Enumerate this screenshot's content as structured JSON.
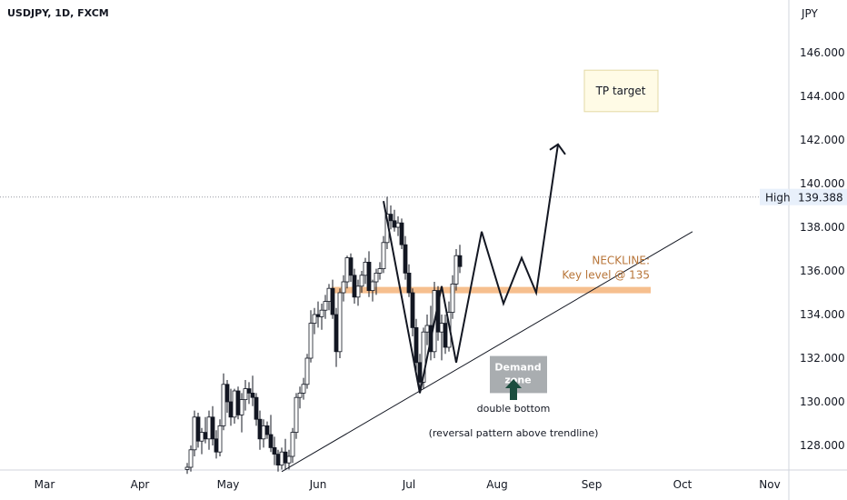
{
  "header": {
    "symbol": "USDJPY, 1D, FXCM",
    "currency": "JPY"
  },
  "colors": {
    "up": "#26a69a",
    "down": "#ef5350",
    "candle_outline": "#131722",
    "neckline_band": "#f5b47a",
    "neckline_text": "#b8763a",
    "demand_zone": "#8c9296",
    "arrow_green": "#1b4d3e",
    "tp_box_fill": "#fffbe6",
    "tp_box_border": "#e3d9a5"
  },
  "chart_data": {
    "type": "candlestick",
    "symbol": "USDJPY",
    "timeframe": "1D",
    "source": "FXCM",
    "x_labels": [
      "Mar",
      "Apr",
      "May",
      "Jun",
      "Jul",
      "Aug",
      "Sep",
      "Oct",
      "Nov"
    ],
    "y_ticks": [
      "146.000",
      "144.000",
      "142.000",
      "140.000",
      "138.000",
      "136.000",
      "134.000",
      "132.000",
      "130.000",
      "128.000"
    ],
    "ylim": [
      126.8,
      148.2
    ],
    "high_marker": {
      "label": "High",
      "value": 139.388,
      "text": "139.388"
    },
    "candles": [
      [
        4.2,
        126.9,
        127.2,
        126.7,
        127.0
      ],
      [
        4.4,
        127.0,
        128.0,
        126.8,
        127.8
      ],
      [
        4.6,
        127.8,
        129.6,
        127.5,
        129.3
      ],
      [
        4.8,
        129.3,
        129.5,
        127.9,
        128.2
      ],
      [
        5.0,
        128.2,
        128.8,
        127.6,
        128.6
      ],
      [
        5.2,
        128.6,
        129.3,
        128.1,
        128.3
      ],
      [
        5.4,
        128.3,
        129.6,
        127.8,
        129.3
      ],
      [
        5.6,
        129.3,
        129.8,
        128.0,
        128.3
      ],
      [
        5.8,
        128.3,
        128.7,
        127.4,
        127.7
      ],
      [
        6.0,
        127.7,
        129.2,
        127.5,
        128.9
      ],
      [
        6.2,
        128.9,
        131.3,
        128.7,
        130.8
      ],
      [
        6.4,
        130.8,
        131.0,
        129.5,
        130.0
      ],
      [
        6.6,
        130.0,
        130.6,
        128.9,
        129.3
      ],
      [
        6.8,
        129.3,
        130.6,
        129.0,
        130.5
      ],
      [
        7.0,
        130.5,
        130.7,
        129.2,
        129.4
      ],
      [
        7.2,
        129.4,
        130.4,
        128.6,
        130.1
      ],
      [
        7.4,
        130.1,
        131.0,
        129.6,
        130.6
      ],
      [
        7.6,
        130.6,
        130.9,
        129.9,
        130.4
      ],
      [
        7.8,
        130.4,
        131.2,
        129.8,
        130.2
      ],
      [
        8.0,
        130.2,
        130.4,
        128.9,
        129.2
      ],
      [
        8.2,
        129.2,
        129.6,
        127.8,
        128.3
      ],
      [
        8.4,
        128.3,
        129.2,
        127.9,
        128.9
      ],
      [
        8.6,
        128.9,
        129.1,
        128.3,
        128.5
      ],
      [
        8.8,
        128.5,
        129.4,
        127.7,
        127.9
      ],
      [
        9.0,
        127.9,
        128.4,
        127.1,
        127.6
      ],
      [
        9.2,
        127.6,
        127.8,
        126.8,
        127.1
      ],
      [
        9.4,
        127.1,
        127.9,
        126.9,
        127.7
      ],
      [
        9.6,
        127.7,
        128.3,
        126.9,
        127.2
      ],
      [
        9.8,
        127.2,
        127.8,
        126.9,
        127.5
      ],
      [
        10.0,
        127.5,
        128.8,
        127.2,
        128.6
      ],
      [
        10.2,
        128.6,
        130.4,
        128.3,
        130.2
      ],
      [
        10.4,
        130.2,
        130.7,
        129.7,
        130.4
      ],
      [
        10.6,
        130.4,
        131.1,
        130.1,
        130.8
      ],
      [
        10.8,
        130.8,
        132.2,
        130.6,
        132.0
      ],
      [
        11.0,
        132.0,
        134.2,
        131.8,
        133.6
      ],
      [
        11.2,
        133.6,
        134.3,
        133.1,
        134.0
      ],
      [
        11.4,
        134.0,
        134.6,
        133.4,
        133.9
      ],
      [
        11.6,
        133.9,
        134.5,
        133.3,
        134.2
      ],
      [
        11.8,
        134.2,
        134.9,
        133.8,
        134.6
      ],
      [
        12.0,
        134.6,
        135.4,
        134.2,
        135.2
      ],
      [
        12.2,
        135.2,
        135.6,
        133.8,
        134.0
      ],
      [
        12.4,
        134.0,
        134.3,
        131.6,
        132.3
      ],
      [
        12.6,
        132.3,
        135.2,
        132.0,
        135.0
      ],
      [
        12.8,
        135.0,
        135.8,
        134.6,
        135.5
      ],
      [
        13.0,
        135.5,
        136.7,
        135.2,
        136.6
      ],
      [
        13.2,
        136.6,
        136.8,
        135.5,
        135.8
      ],
      [
        13.4,
        135.8,
        136.1,
        134.5,
        134.8
      ],
      [
        13.6,
        134.8,
        135.6,
        134.4,
        135.3
      ],
      [
        13.8,
        135.3,
        136.0,
        135.0,
        135.8
      ],
      [
        14.0,
        135.8,
        136.6,
        135.4,
        136.4
      ],
      [
        14.2,
        136.4,
        136.9,
        134.8,
        135.1
      ],
      [
        14.4,
        135.1,
        135.6,
        134.6,
        135.5
      ],
      [
        14.6,
        135.5,
        136.1,
        134.9,
        135.9
      ],
      [
        14.8,
        135.9,
        136.4,
        135.6,
        136.1
      ],
      [
        15.0,
        136.1,
        137.6,
        135.9,
        137.3
      ],
      [
        15.2,
        137.3,
        139.4,
        137.0,
        138.6
      ],
      [
        15.4,
        138.6,
        139.0,
        137.9,
        138.3
      ],
      [
        15.6,
        138.3,
        138.8,
        137.8,
        138.0
      ],
      [
        15.8,
        138.0,
        138.5,
        137.6,
        138.2
      ],
      [
        16.0,
        138.2,
        138.4,
        137.0,
        137.2
      ],
      [
        16.2,
        137.2,
        137.6,
        135.6,
        135.9
      ],
      [
        16.4,
        135.9,
        136.3,
        134.8,
        135.0
      ],
      [
        16.6,
        135.0,
        135.2,
        133.0,
        133.4
      ],
      [
        16.8,
        133.4,
        133.8,
        131.4,
        131.8
      ],
      [
        17.0,
        131.8,
        132.2,
        130.4,
        130.9
      ],
      [
        17.2,
        130.9,
        133.4,
        130.6,
        133.2
      ],
      [
        17.4,
        133.2,
        134.0,
        132.6,
        133.5
      ],
      [
        17.6,
        133.5,
        134.4,
        131.9,
        132.3
      ],
      [
        17.8,
        132.3,
        135.5,
        132.0,
        135.1
      ],
      [
        18.0,
        135.1,
        135.3,
        132.8,
        133.2
      ],
      [
        18.2,
        133.2,
        134.0,
        131.9,
        133.6
      ],
      [
        18.4,
        133.6,
        134.0,
        132.2,
        132.5
      ],
      [
        18.6,
        132.5,
        134.6,
        132.3,
        134.1
      ],
      [
        18.8,
        134.1,
        135.8,
        133.8,
        135.4
      ],
      [
        19.0,
        135.4,
        137.0,
        135.1,
        136.7
      ],
      [
        19.2,
        136.7,
        137.2,
        135.9,
        136.2
      ]
    ],
    "neckline": {
      "label_line1": "NECKLINE:",
      "label_line2": "Key level @ 135",
      "value": 135.1
    },
    "demand_zone": {
      "text_line1": "Demand",
      "text_line2": "zone",
      "y_range": [
        130.4,
        132.1
      ]
    },
    "tp_target": {
      "label": "TP target",
      "y_range": [
        143.3,
        145.2
      ]
    },
    "projection_path": [
      [
        15.0,
        139.2
      ],
      [
        17.0,
        130.4
      ],
      [
        18.2,
        135.3
      ],
      [
        19.0,
        131.8
      ],
      [
        20.4,
        137.8
      ],
      [
        21.6,
        134.5
      ],
      [
        22.6,
        136.6
      ],
      [
        23.4,
        135.0
      ],
      [
        24.6,
        141.8
      ]
    ],
    "trendline": [
      [
        9.4,
        126.8
      ],
      [
        32.0,
        137.8
      ]
    ],
    "annotations": [
      "double bottom",
      "(reversal pattern above trendline)"
    ]
  }
}
